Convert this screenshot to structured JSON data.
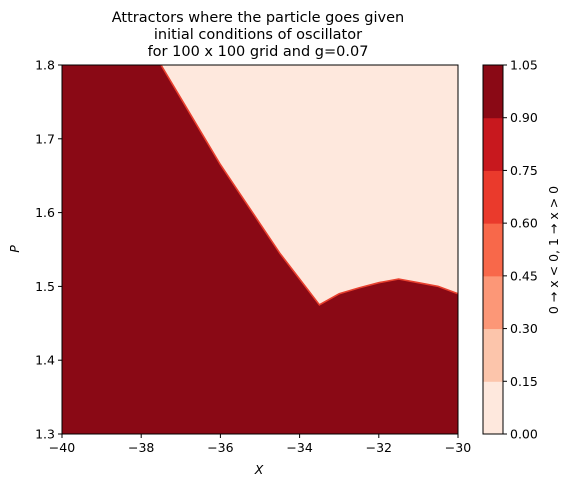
{
  "chart_data": {
    "type": "heatmap",
    "subtype": "filled-contour",
    "title_lines": [
      "Attractors where the particle goes given",
      "initial conditions of oscillator",
      "for 100 x 100 grid and g=0.07"
    ],
    "xlabel": "X",
    "ylabel": "P",
    "xlim": [
      -40,
      -30
    ],
    "ylim": [
      1.3,
      1.8
    ],
    "xticks": [
      "−40",
      "−38",
      "−36",
      "−34",
      "−32",
      "−30"
    ],
    "xtick_values": [
      -40,
      -38,
      -36,
      -34,
      -32,
      -30
    ],
    "yticks": [
      "1.3",
      "1.4",
      "1.5",
      "1.6",
      "1.7",
      "1.8"
    ],
    "ytick_values": [
      1.3,
      1.4,
      1.5,
      1.6,
      1.7,
      1.8
    ],
    "boundary": [
      [
        -37.5,
        1.8
      ],
      [
        -37.0,
        1.755
      ],
      [
        -36.5,
        1.71
      ],
      [
        -36.0,
        1.665
      ],
      [
        -35.5,
        1.625
      ],
      [
        -35.0,
        1.585
      ],
      [
        -34.5,
        1.545
      ],
      [
        -34.0,
        1.51
      ],
      [
        -33.5,
        1.475
      ],
      [
        -33.0,
        1.49
      ],
      [
        -32.5,
        1.498
      ],
      [
        -32.0,
        1.505
      ],
      [
        -31.5,
        1.51
      ],
      [
        -31.0,
        1.505
      ],
      [
        -30.5,
        1.5
      ],
      [
        -30.0,
        1.49
      ]
    ],
    "region_below_boundary_value": 1.0,
    "region_above_boundary_value": 0.0,
    "colorbar": {
      "label": "0 → x < 0,  1 → x > 0",
      "levels": [
        0.0,
        0.15,
        0.3,
        0.45,
        0.6,
        0.75,
        0.9,
        1.05
      ],
      "tick_labels": [
        "0.00",
        "0.15",
        "0.30",
        "0.45",
        "0.60",
        "0.75",
        "0.90",
        "1.05"
      ],
      "colors": [
        "#fee8dd",
        "#fcc5ab",
        "#fc9777",
        "#f8684a",
        "#ea3a2c",
        "#c8181e",
        "#8a0915"
      ]
    },
    "colormap": "Reds"
  }
}
